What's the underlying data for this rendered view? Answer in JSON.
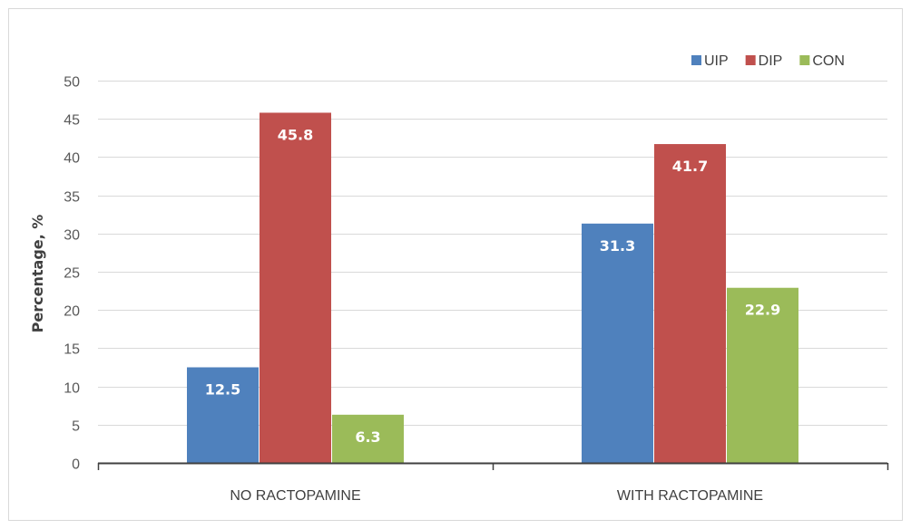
{
  "chart_data": {
    "type": "bar",
    "title": "",
    "xlabel": "",
    "ylabel": "Percentage, %",
    "categories": [
      "NO RACTOPAMINE",
      "WITH RACTOPAMINE"
    ],
    "series": [
      {
        "name": "UIP",
        "color": "#4f81bd",
        "values": [
          12.5,
          31.3
        ]
      },
      {
        "name": "DIP",
        "color": "#c0504d",
        "values": [
          45.8,
          41.7
        ]
      },
      {
        "name": "CON",
        "color": "#9bbb59",
        "values": [
          6.3,
          22.9
        ]
      }
    ],
    "ylim": [
      0,
      50
    ],
    "yticks": [
      0,
      5,
      10,
      15,
      20,
      25,
      30,
      35,
      40,
      45,
      50
    ],
    "grid": true,
    "legend_position": "top-right",
    "data_labels": true
  }
}
